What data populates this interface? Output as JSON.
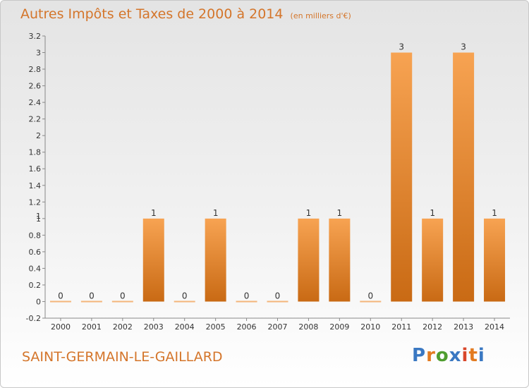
{
  "header": {
    "title": "Autres Impôts et Taxes de 2000 à 2014",
    "unit": "(en milliers d'€)"
  },
  "footer": {
    "commune": "SAINT-GERMAIN-LE-GAILLARD",
    "logo": "Proxiti",
    "logo_colors": [
      "#3a78c2",
      "#e37b20",
      "#4f9d2f",
      "#3a78c2",
      "#d9472b",
      "#e37b20",
      "#3a78c2"
    ]
  },
  "chart_data": {
    "type": "bar",
    "title": "Autres Impôts et Taxes de 2000 à 2014",
    "categories": [
      "2000",
      "2001",
      "2002",
      "2003",
      "2004",
      "2005",
      "2006",
      "2007",
      "2008",
      "2009",
      "2010",
      "2011",
      "2012",
      "2013",
      "2014"
    ],
    "values": [
      0,
      0,
      0,
      1,
      0,
      1,
      0,
      0,
      1,
      1,
      0,
      3,
      1,
      3,
      1
    ],
    "value_labels": [
      "0",
      "0",
      "0",
      "1",
      "0",
      "1",
      "0",
      "0",
      "1",
      "1",
      "0",
      "3",
      "1",
      "3",
      "1"
    ],
    "ylim": [
      -0.2,
      3.2
    ],
    "yticks": [
      "3.2",
      "3",
      "2.8",
      "2.6",
      "2.4",
      "2.2",
      "2",
      "1.8",
      "1.6",
      "1.4",
      "1.2",
      "1",
      "0.8",
      "0.6",
      "0.4",
      "0.2",
      "0",
      "-0.2"
    ],
    "ytick_values": [
      3.2,
      3,
      2.8,
      2.6,
      2.4,
      2.2,
      2,
      1.8,
      1.6,
      1.4,
      1.2,
      1,
      0.8,
      0.6,
      0.4,
      0.2,
      0,
      -0.2
    ],
    "extra_ytick_label": "1",
    "grid": false,
    "bar_color": "#f08a30"
  }
}
